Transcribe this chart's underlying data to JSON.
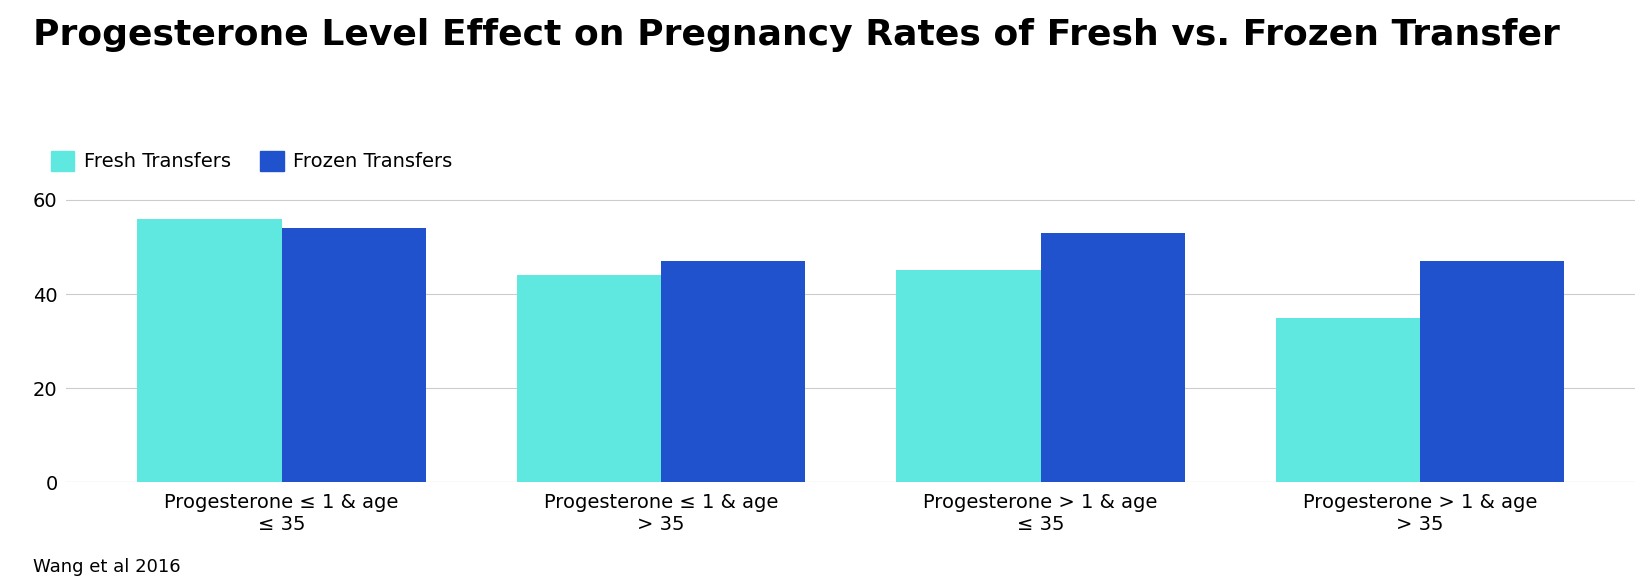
{
  "title": "Progesterone Level Effect on Pregnancy Rates of Fresh vs. Frozen Transfer",
  "fresh_values": [
    56,
    44,
    45,
    35
  ],
  "frozen_values": [
    54,
    47,
    53,
    47
  ],
  "categories": [
    "Progesterone ≤ 1 & age\n≤ 35",
    "Progesterone ≤ 1 & age\n> 35",
    "Progesterone > 1 & age\n≤ 35",
    "Progesterone > 1 & age\n> 35"
  ],
  "fresh_color": "#5ee8e0",
  "frozen_color": "#1f52cc",
  "ylim": [
    0,
    65
  ],
  "yticks": [
    0,
    20,
    40,
    60
  ],
  "legend_labels": [
    "Fresh Transfers",
    "Frozen Transfers"
  ],
  "source_text": "Wang et al 2016",
  "title_fontsize": 26,
  "label_fontsize": 14,
  "tick_fontsize": 14,
  "source_fontsize": 13,
  "legend_fontsize": 14,
  "bar_width": 0.38,
  "background_color": "#ffffff"
}
